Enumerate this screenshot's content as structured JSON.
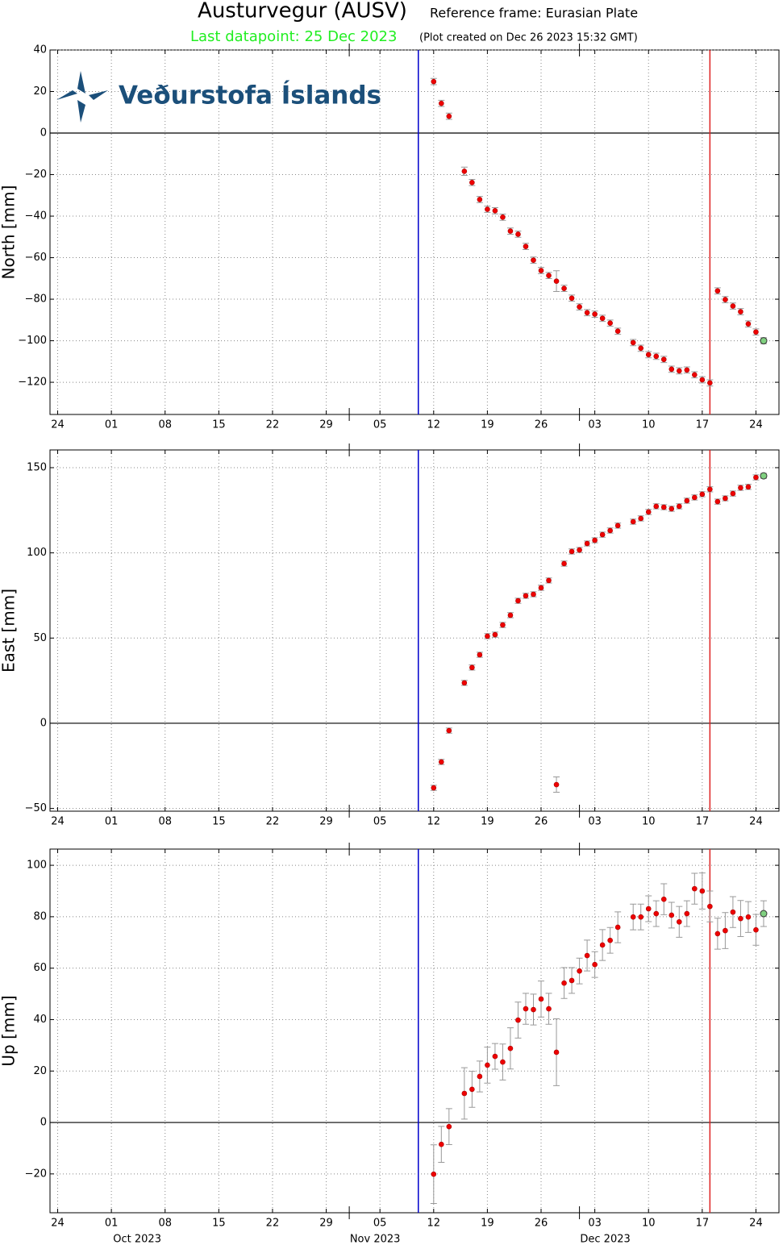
{
  "header": {
    "title": "Austurvegur (AUSV)",
    "reference": "Reference frame: Eurasian Plate",
    "last_datapoint": "Last datapoint: 25 Dec 2023",
    "created": "(Plot created on Dec 26 2023 15:32 GMT)"
  },
  "logo": "Veðurstofa Íslands",
  "chart_data": [
    {
      "type": "scatter",
      "ylabel": "North [mm]",
      "xlim": [
        "2023-09-23",
        "2023-12-27"
      ],
      "xticks": [
        {
          "value": "2023-09-24",
          "label": "24"
        },
        {
          "value": "2023-10-01",
          "label": "01"
        },
        {
          "value": "2023-10-08",
          "label": "08"
        },
        {
          "value": "2023-10-15",
          "label": "15"
        },
        {
          "value": "2023-10-22",
          "label": "22"
        },
        {
          "value": "2023-10-29",
          "label": "29"
        },
        {
          "value": "2023-11-05",
          "label": "05"
        },
        {
          "value": "2023-11-12",
          "label": "12"
        },
        {
          "value": "2023-11-19",
          "label": "19"
        },
        {
          "value": "2023-11-26",
          "label": "26"
        },
        {
          "value": "2023-12-03",
          "label": "03"
        },
        {
          "value": "2023-12-10",
          "label": "10"
        },
        {
          "value": "2023-12-17",
          "label": "17"
        },
        {
          "value": "2023-12-24",
          "label": "24"
        }
      ],
      "minor_xticks": [
        "2023-11-01",
        "2023-12-01"
      ],
      "ylim": [
        -135.5,
        40
      ],
      "yticks": [
        {
          "value": -120,
          "label": "−120"
        },
        {
          "value": -100,
          "label": "−100"
        },
        {
          "value": -80,
          "label": "−80"
        },
        {
          "value": -60,
          "label": "−60"
        },
        {
          "value": -40,
          "label": "−40"
        },
        {
          "value": -20,
          "label": "−20"
        },
        0,
        20,
        40
      ],
      "grid": true,
      "hline": 0,
      "vlines": [
        {
          "value": "2023-11-10",
          "color": "#0000cc"
        },
        {
          "value": "2023-12-18",
          "color": "#dd2222"
        }
      ],
      "series": [
        {
          "color": "#ee0000",
          "x": [
            "2023-11-12",
            "2023-11-13",
            "2023-11-14",
            "2023-11-16",
            "2023-11-17",
            "2023-11-18",
            "2023-11-19",
            "2023-11-20",
            "2023-11-21",
            "2023-11-22",
            "2023-11-23",
            "2023-11-24",
            "2023-11-25",
            "2023-11-26",
            "2023-11-27",
            "2023-11-28",
            "2023-11-29",
            "2023-11-30",
            "2023-12-01",
            "2023-12-02",
            "2023-12-03",
            "2023-12-04",
            "2023-12-05",
            "2023-12-06",
            "2023-12-08",
            "2023-12-09",
            "2023-12-10",
            "2023-12-11",
            "2023-12-12",
            "2023-12-13",
            "2023-12-14",
            "2023-12-15",
            "2023-12-16",
            "2023-12-17",
            "2023-12-18",
            "2023-12-19",
            "2023-12-20",
            "2023-12-21",
            "2023-12-22",
            "2023-12-23",
            "2023-12-24"
          ],
          "values": [
            24.8,
            14.3,
            8.1,
            -18.4,
            -23.8,
            -32,
            -36.7,
            -37.4,
            -40.5,
            -47.2,
            -48.7,
            -54.6,
            -61.2,
            -66.2,
            -68.6,
            -71.3,
            -74.8,
            -79.5,
            -83.7,
            -86.5,
            -87.2,
            -89.2,
            -91.5,
            -95.4,
            -100.9,
            -103.6,
            -106.7,
            -107.5,
            -109,
            -113.7,
            -114.5,
            -114.1,
            -116.4,
            -118.8,
            -120.3,
            -76,
            -80.2,
            -83.3,
            -86,
            -91.9,
            -95.8
          ],
          "errors": [
            1.5,
            1.5,
            1.5,
            2,
            1.5,
            1.5,
            1.5,
            1.5,
            1.5,
            1.5,
            1.5,
            1.5,
            1.5,
            1.5,
            1.5,
            5,
            1.5,
            1.5,
            1.5,
            1.5,
            1.5,
            1.5,
            1.5,
            1.5,
            1.5,
            1.5,
            1.5,
            1.5,
            1.5,
            1.5,
            1.5,
            1.5,
            1.5,
            1.5,
            1.5,
            1.5,
            1.5,
            1.5,
            1.5,
            1.5,
            1.5
          ]
        },
        {
          "color": "#80d080",
          "x": [
            "2023-12-25"
          ],
          "values": [
            -100
          ],
          "errors": [
            1.5
          ]
        }
      ]
    },
    {
      "type": "scatter",
      "ylabel": "East [mm]",
      "xlim": [
        "2023-09-23",
        "2023-12-27"
      ],
      "xticks": [
        {
          "value": "2023-09-24",
          "label": "24"
        },
        {
          "value": "2023-10-01",
          "label": "01"
        },
        {
          "value": "2023-10-08",
          "label": "08"
        },
        {
          "value": "2023-10-15",
          "label": "15"
        },
        {
          "value": "2023-10-22",
          "label": "22"
        },
        {
          "value": "2023-10-29",
          "label": "29"
        },
        {
          "value": "2023-11-05",
          "label": "05"
        },
        {
          "value": "2023-11-12",
          "label": "12"
        },
        {
          "value": "2023-11-19",
          "label": "19"
        },
        {
          "value": "2023-11-26",
          "label": "26"
        },
        {
          "value": "2023-12-03",
          "label": "03"
        },
        {
          "value": "2023-12-10",
          "label": "10"
        },
        {
          "value": "2023-12-17",
          "label": "17"
        },
        {
          "value": "2023-12-24",
          "label": "24"
        }
      ],
      "minor_xticks": [
        "2023-11-01",
        "2023-12-01"
      ],
      "ylim": [
        -51.6,
        160.4
      ],
      "yticks": [
        {
          "value": -50,
          "label": "−50"
        },
        0,
        50,
        100,
        150
      ],
      "grid": true,
      "hline": 0,
      "vlines": [
        {
          "value": "2023-11-10",
          "color": "#0000cc"
        },
        {
          "value": "2023-12-18",
          "color": "#dd2222"
        }
      ],
      "series": [
        {
          "color": "#ee0000",
          "x": [
            "2023-11-12",
            "2023-11-13",
            "2023-11-14",
            "2023-11-16",
            "2023-11-17",
            "2023-11-18",
            "2023-11-19",
            "2023-11-20",
            "2023-11-21",
            "2023-11-22",
            "2023-11-23",
            "2023-11-24",
            "2023-11-25",
            "2023-11-26",
            "2023-11-27",
            "2023-11-28",
            "2023-11-29",
            "2023-11-30",
            "2023-12-01",
            "2023-12-02",
            "2023-12-03",
            "2023-12-04",
            "2023-12-05",
            "2023-12-06",
            "2023-12-08",
            "2023-12-09",
            "2023-12-10",
            "2023-12-11",
            "2023-12-12",
            "2023-12-13",
            "2023-12-14",
            "2023-12-15",
            "2023-12-16",
            "2023-12-17",
            "2023-12-18",
            "2023-12-19",
            "2023-12-20",
            "2023-12-21",
            "2023-12-22",
            "2023-12-23",
            "2023-12-24"
          ],
          "values": [
            -37.9,
            -22.7,
            -4.3,
            23.7,
            32.7,
            40.2,
            51.1,
            52,
            57.7,
            63.4,
            71.9,
            74.8,
            75.7,
            79.5,
            83.8,
            -36,
            93.7,
            100.8,
            101.7,
            105.5,
            107.4,
            110.7,
            113.1,
            116,
            118.3,
            120.2,
            124,
            127.3,
            126.8,
            125.9,
            127.3,
            130.6,
            132.5,
            134.4,
            137.3,
            130.1,
            132,
            134.8,
            138.2,
            138.7,
            144.3
          ],
          "errors": [
            1.5,
            1.5,
            1.5,
            1.5,
            1.5,
            1.5,
            1.5,
            1.5,
            1.5,
            1.5,
            1.5,
            1.5,
            1.5,
            1.5,
            1.5,
            4.5,
            1.5,
            1.5,
            1.5,
            1.5,
            1.5,
            1.5,
            1.5,
            1.5,
            1.5,
            1.5,
            1.5,
            1.5,
            1.5,
            1.5,
            1.5,
            1.5,
            1.5,
            1.5,
            1.5,
            1.5,
            1.5,
            1.5,
            1.5,
            1.5,
            1.5
          ]
        },
        {
          "color": "#80d080",
          "x": [
            "2023-12-25"
          ],
          "values": [
            145.2
          ],
          "errors": [
            1.5
          ]
        }
      ]
    },
    {
      "type": "scatter",
      "ylabel": "Up [mm]",
      "xlim": [
        "2023-09-23",
        "2023-12-27"
      ],
      "xticks": [
        {
          "value": "2023-09-24",
          "label": "24"
        },
        {
          "value": "2023-10-01",
          "label": "01"
        },
        {
          "value": "2023-10-08",
          "label": "08"
        },
        {
          "value": "2023-10-15",
          "label": "15"
        },
        {
          "value": "2023-10-22",
          "label": "22"
        },
        {
          "value": "2023-10-29",
          "label": "29"
        },
        {
          "value": "2023-11-05",
          "label": "05"
        },
        {
          "value": "2023-11-12",
          "label": "12"
        },
        {
          "value": "2023-11-19",
          "label": "19"
        },
        {
          "value": "2023-11-26",
          "label": "26"
        },
        {
          "value": "2023-12-03",
          "label": "03"
        },
        {
          "value": "2023-12-10",
          "label": "10"
        },
        {
          "value": "2023-12-17",
          "label": "17"
        },
        {
          "value": "2023-12-24",
          "label": "24"
        }
      ],
      "minor_xticks": [
        "2023-11-01",
        "2023-12-01"
      ],
      "month_labels": [
        {
          "value": "2023-10-01",
          "label": "Oct 2023"
        },
        {
          "value": "2023-11-01",
          "label": "Nov 2023"
        },
        {
          "value": "2023-12-01",
          "label": "Dec 2023"
        }
      ],
      "ylim": [
        -35.1,
        106.3
      ],
      "yticks": [
        {
          "value": -20,
          "label": "−20"
        },
        0,
        20,
        40,
        60,
        80,
        100
      ],
      "grid": true,
      "hline": 0,
      "vlines": [
        {
          "value": "2023-11-10",
          "color": "#0000cc"
        },
        {
          "value": "2023-12-18",
          "color": "#dd2222"
        }
      ],
      "series": [
        {
          "color": "#ee0000",
          "x": [
            "2023-11-12",
            "2023-11-13",
            "2023-11-14",
            "2023-11-16",
            "2023-11-17",
            "2023-11-18",
            "2023-11-19",
            "2023-11-20",
            "2023-11-21",
            "2023-11-22",
            "2023-11-23",
            "2023-11-24",
            "2023-11-25",
            "2023-11-26",
            "2023-11-27",
            "2023-11-28",
            "2023-11-29",
            "2023-11-30",
            "2023-12-01",
            "2023-12-02",
            "2023-12-03",
            "2023-12-04",
            "2023-12-05",
            "2023-12-06",
            "2023-12-08",
            "2023-12-09",
            "2023-12-10",
            "2023-12-11",
            "2023-12-12",
            "2023-12-13",
            "2023-12-14",
            "2023-12-15",
            "2023-12-16",
            "2023-12-17",
            "2023-12-18",
            "2023-12-19",
            "2023-12-20",
            "2023-12-21",
            "2023-12-22",
            "2023-12-23",
            "2023-12-24"
          ],
          "values": [
            -20.1,
            -8.5,
            -1.6,
            11.3,
            12.9,
            17.9,
            22.3,
            25.7,
            23.5,
            28.8,
            39.8,
            44.2,
            43.9,
            48,
            44.2,
            27.3,
            54.2,
            55.2,
            58.9,
            64.9,
            61.4,
            69,
            70.8,
            75.9,
            79.9,
            79.9,
            83.1,
            81.2,
            86.8,
            80.6,
            78,
            81.2,
            90.9,
            90,
            84,
            73.4,
            74.6,
            81.8,
            79.3,
            79.9,
            74.9
          ],
          "errors": [
            11.4,
            7,
            7,
            10,
            7,
            6,
            7,
            5,
            7,
            8,
            7,
            6,
            6,
            7,
            6,
            13,
            6,
            5,
            5,
            6,
            5,
            6,
            5,
            6,
            5,
            5,
            5,
            5,
            6,
            5,
            6,
            5,
            6,
            7,
            6,
            6,
            7,
            6,
            7,
            6,
            6
          ]
        },
        {
          "color": "#80d080",
          "x": [
            "2023-12-25"
          ],
          "values": [
            81.2
          ],
          "errors": [
            5
          ]
        }
      ]
    }
  ]
}
